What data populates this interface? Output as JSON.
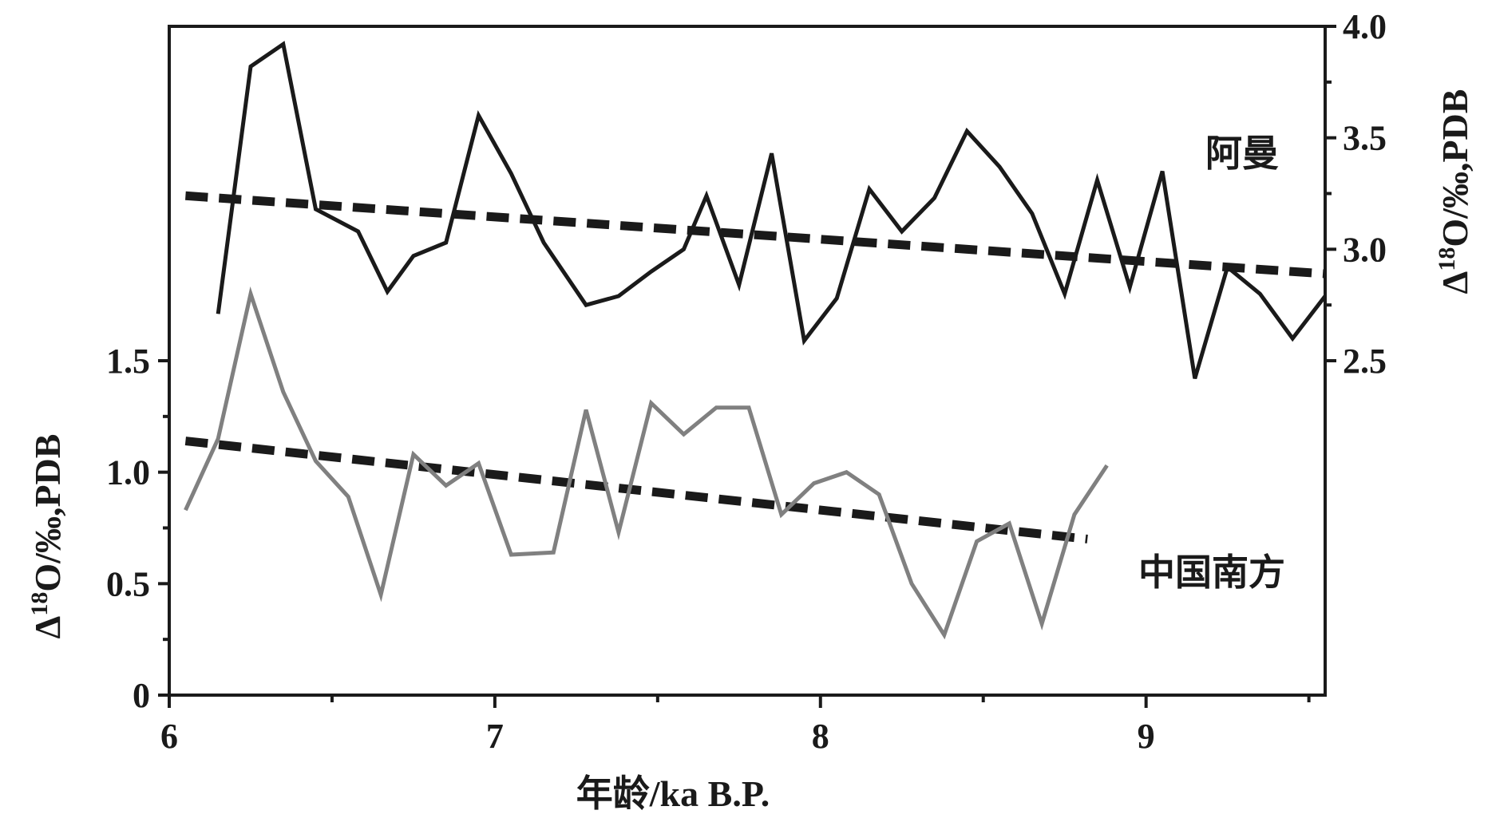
{
  "chart_data": {
    "type": "line",
    "x": {
      "label": "年龄/ka B.P.",
      "range": [
        6,
        9.55
      ],
      "ticks": [
        6,
        7,
        8,
        9
      ],
      "tick_labels": [
        "6",
        "7",
        "8",
        "9"
      ]
    },
    "y_left": {
      "label_pre": "Δ",
      "label_sup": "18",
      "label_post": "O/‰,PDB",
      "range": [
        0,
        3.0
      ],
      "ticks": [
        0,
        0.5,
        1.0,
        1.5
      ],
      "tick_labels": [
        "0",
        "0.5",
        "1.0",
        "1.5"
      ]
    },
    "y_right": {
      "label_pre": "Δ",
      "label_sup": "18",
      "label_post": "O/‰,PDB",
      "range": [
        1.0,
        4.0
      ],
      "ticks": [
        2.5,
        3.0,
        3.5,
        4.0
      ],
      "tick_labels": [
        "2.5",
        "3.0",
        "3.5",
        "4.0"
      ]
    },
    "series": [
      {
        "name": "阿曼",
        "axis": "right",
        "color": "#1a1a1a",
        "points": [
          [
            6.15,
            2.71
          ],
          [
            6.25,
            3.82
          ],
          [
            6.35,
            3.92
          ],
          [
            6.45,
            3.18
          ],
          [
            6.58,
            3.08
          ],
          [
            6.67,
            2.81
          ],
          [
            6.75,
            2.97
          ],
          [
            6.85,
            3.03
          ],
          [
            6.95,
            3.6
          ],
          [
            7.05,
            3.34
          ],
          [
            7.15,
            3.03
          ],
          [
            7.28,
            2.75
          ],
          [
            7.38,
            2.79
          ],
          [
            7.48,
            2.9
          ],
          [
            7.58,
            3.0
          ],
          [
            7.65,
            3.24
          ],
          [
            7.75,
            2.84
          ],
          [
            7.85,
            3.43
          ],
          [
            7.95,
            2.59
          ],
          [
            8.05,
            2.78
          ],
          [
            8.15,
            3.27
          ],
          [
            8.25,
            3.08
          ],
          [
            8.35,
            3.23
          ],
          [
            8.45,
            3.53
          ],
          [
            8.55,
            3.37
          ],
          [
            8.65,
            3.16
          ],
          [
            8.75,
            2.8
          ],
          [
            8.85,
            3.31
          ],
          [
            8.95,
            2.83
          ],
          [
            9.05,
            3.35
          ],
          [
            9.15,
            2.42
          ],
          [
            9.25,
            2.92
          ],
          [
            9.35,
            2.8
          ],
          [
            9.45,
            2.6
          ],
          [
            9.55,
            2.79
          ]
        ],
        "trend": [
          [
            6.05,
            3.24
          ],
          [
            9.55,
            2.89
          ]
        ]
      },
      {
        "name": "中国南方",
        "axis": "left",
        "color": "#808080",
        "points": [
          [
            6.05,
            0.83
          ],
          [
            6.15,
            1.15
          ],
          [
            6.25,
            1.8
          ],
          [
            6.35,
            1.36
          ],
          [
            6.45,
            1.05
          ],
          [
            6.55,
            0.89
          ],
          [
            6.65,
            0.45
          ],
          [
            6.75,
            1.08
          ],
          [
            6.85,
            0.94
          ],
          [
            6.95,
            1.04
          ],
          [
            7.05,
            0.63
          ],
          [
            7.18,
            0.64
          ],
          [
            7.28,
            1.28
          ],
          [
            7.38,
            0.73
          ],
          [
            7.48,
            1.31
          ],
          [
            7.58,
            1.17
          ],
          [
            7.68,
            1.29
          ],
          [
            7.78,
            1.29
          ],
          [
            7.88,
            0.81
          ],
          [
            7.98,
            0.95
          ],
          [
            8.08,
            1.0
          ],
          [
            8.18,
            0.9
          ],
          [
            8.28,
            0.5
          ],
          [
            8.38,
            0.27
          ],
          [
            8.48,
            0.69
          ],
          [
            8.58,
            0.77
          ],
          [
            8.68,
            0.32
          ],
          [
            8.78,
            0.81
          ],
          [
            8.88,
            1.03
          ]
        ],
        "trend": [
          [
            6.05,
            1.14
          ],
          [
            8.82,
            0.7
          ]
        ]
      }
    ]
  }
}
